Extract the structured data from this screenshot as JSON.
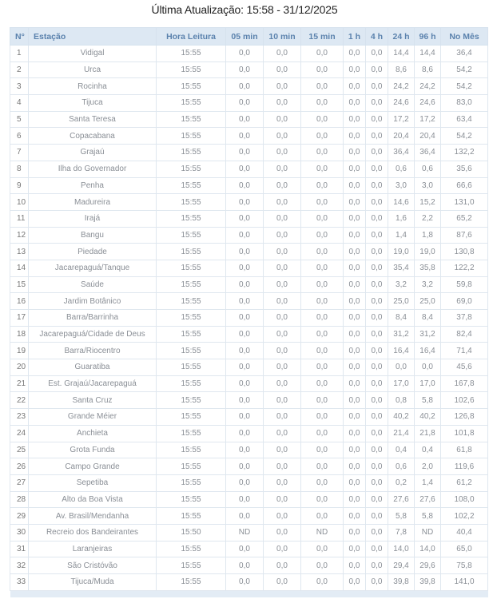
{
  "title": "Última Atualização: 15:58 - 31/12/2025",
  "table": {
    "headers": [
      "N°",
      "Estação",
      "Hora Leitura",
      "05 min",
      "10 min",
      "15 min",
      "1 h",
      "4 h",
      "24 h",
      "96 h",
      "No Mês"
    ],
    "rows": [
      [
        "1",
        "Vidigal",
        "15:55",
        "0,0",
        "0,0",
        "0,0",
        "0,0",
        "0,0",
        "14,4",
        "14,4",
        "36,4"
      ],
      [
        "2",
        "Urca",
        "15:55",
        "0,0",
        "0,0",
        "0,0",
        "0,0",
        "0,0",
        "8,6",
        "8,6",
        "54,2"
      ],
      [
        "3",
        "Rocinha",
        "15:55",
        "0,0",
        "0,0",
        "0,0",
        "0,0",
        "0,0",
        "24,2",
        "24,2",
        "54,2"
      ],
      [
        "4",
        "Tijuca",
        "15:55",
        "0,0",
        "0,0",
        "0,0",
        "0,0",
        "0,0",
        "24,6",
        "24,6",
        "83,0"
      ],
      [
        "5",
        "Santa Teresa",
        "15:55",
        "0,0",
        "0,0",
        "0,0",
        "0,0",
        "0,0",
        "17,2",
        "17,2",
        "63,4"
      ],
      [
        "6",
        "Copacabana",
        "15:55",
        "0,0",
        "0,0",
        "0,0",
        "0,0",
        "0,0",
        "20,4",
        "20,4",
        "54,2"
      ],
      [
        "7",
        "Grajaú",
        "15:55",
        "0,0",
        "0,0",
        "0,0",
        "0,0",
        "0,0",
        "36,4",
        "36,4",
        "132,2"
      ],
      [
        "8",
        "Ilha do Governador",
        "15:55",
        "0,0",
        "0,0",
        "0,0",
        "0,0",
        "0,0",
        "0,6",
        "0,6",
        "35,6"
      ],
      [
        "9",
        "Penha",
        "15:55",
        "0,0",
        "0,0",
        "0,0",
        "0,0",
        "0,0",
        "3,0",
        "3,0",
        "66,6"
      ],
      [
        "10",
        "Madureira",
        "15:55",
        "0,0",
        "0,0",
        "0,0",
        "0,0",
        "0,0",
        "14,6",
        "15,2",
        "131,0"
      ],
      [
        "11",
        "Irajá",
        "15:55",
        "0,0",
        "0,0",
        "0,0",
        "0,0",
        "0,0",
        "1,6",
        "2,2",
        "65,2"
      ],
      [
        "12",
        "Bangu",
        "15:55",
        "0,0",
        "0,0",
        "0,0",
        "0,0",
        "0,0",
        "1,4",
        "1,8",
        "87,6"
      ],
      [
        "13",
        "Piedade",
        "15:55",
        "0,0",
        "0,0",
        "0,0",
        "0,0",
        "0,0",
        "19,0",
        "19,0",
        "130,8"
      ],
      [
        "14",
        "Jacarepaguá/Tanque",
        "15:55",
        "0,0",
        "0,0",
        "0,0",
        "0,0",
        "0,0",
        "35,4",
        "35,8",
        "122,2"
      ],
      [
        "15",
        "Saúde",
        "15:55",
        "0,0",
        "0,0",
        "0,0",
        "0,0",
        "0,0",
        "3,2",
        "3,2",
        "59,8"
      ],
      [
        "16",
        "Jardim Botânico",
        "15:55",
        "0,0",
        "0,0",
        "0,0",
        "0,0",
        "0,0",
        "25,0",
        "25,0",
        "69,0"
      ],
      [
        "17",
        "Barra/Barrinha",
        "15:55",
        "0,0",
        "0,0",
        "0,0",
        "0,0",
        "0,0",
        "8,4",
        "8,4",
        "37,8"
      ],
      [
        "18",
        "Jacarepaguá/Cidade de Deus",
        "15:55",
        "0,0",
        "0,0",
        "0,0",
        "0,0",
        "0,0",
        "31,2",
        "31,2",
        "82,4"
      ],
      [
        "19",
        "Barra/Riocentro",
        "15:55",
        "0,0",
        "0,0",
        "0,0",
        "0,0",
        "0,0",
        "16,4",
        "16,4",
        "71,4"
      ],
      [
        "20",
        "Guaratiba",
        "15:55",
        "0,0",
        "0,0",
        "0,0",
        "0,0",
        "0,0",
        "0,0",
        "0,0",
        "45,6"
      ],
      [
        "21",
        "Est. Grajaú/Jacarepaguá",
        "15:55",
        "0,0",
        "0,0",
        "0,0",
        "0,0",
        "0,0",
        "17,0",
        "17,0",
        "167,8"
      ],
      [
        "22",
        "Santa Cruz",
        "15:55",
        "0,0",
        "0,0",
        "0,0",
        "0,0",
        "0,0",
        "0,8",
        "5,8",
        "102,6"
      ],
      [
        "23",
        "Grande Méier",
        "15:55",
        "0,0",
        "0,0",
        "0,0",
        "0,0",
        "0,0",
        "40,2",
        "40,2",
        "126,8"
      ],
      [
        "24",
        "Anchieta",
        "15:55",
        "0,0",
        "0,0",
        "0,0",
        "0,0",
        "0,0",
        "21,4",
        "21,8",
        "101,8"
      ],
      [
        "25",
        "Grota Funda",
        "15:55",
        "0,0",
        "0,0",
        "0,0",
        "0,0",
        "0,0",
        "0,4",
        "0,4",
        "61,8"
      ],
      [
        "26",
        "Campo Grande",
        "15:55",
        "0,0",
        "0,0",
        "0,0",
        "0,0",
        "0,0",
        "0,6",
        "2,0",
        "119,6"
      ],
      [
        "27",
        "Sepetiba",
        "15:55",
        "0,0",
        "0,0",
        "0,0",
        "0,0",
        "0,0",
        "0,2",
        "1,4",
        "61,2"
      ],
      [
        "28",
        "Alto da Boa Vista",
        "15:55",
        "0,0",
        "0,0",
        "0,0",
        "0,0",
        "0,0",
        "27,6",
        "27,6",
        "108,0"
      ],
      [
        "29",
        "Av. Brasil/Mendanha",
        "15:55",
        "0,0",
        "0,0",
        "0,0",
        "0,0",
        "0,0",
        "5,8",
        "5,8",
        "102,2"
      ],
      [
        "30",
        "Recreio dos Bandeirantes",
        "15:50",
        "ND",
        "0,0",
        "ND",
        "0,0",
        "0,0",
        "7,8",
        "ND",
        "40,4"
      ],
      [
        "31",
        "Laranjeiras",
        "15:55",
        "0,0",
        "0,0",
        "0,0",
        "0,0",
        "0,0",
        "14,0",
        "14,0",
        "65,0"
      ],
      [
        "32",
        "São Cristóvão",
        "15:55",
        "0,0",
        "0,0",
        "0,0",
        "0,0",
        "0,0",
        "29,4",
        "29,6",
        "75,8"
      ],
      [
        "33",
        "Tijuca/Muda",
        "15:55",
        "0,0",
        "0,0",
        "0,0",
        "0,0",
        "0,0",
        "39,8",
        "39,8",
        "141,0"
      ]
    ]
  }
}
